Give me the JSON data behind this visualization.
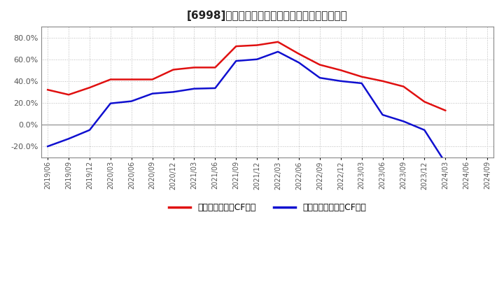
{
  "title": "[6998]　有利子負債キャッシュフロー比率の推移",
  "legend_red": "有利子負債営業CF比率",
  "legend_blue": "有利子負債フリーCF比率",
  "x_labels": [
    "2019/06",
    "2019/09",
    "2019/12",
    "2020/03",
    "2020/06",
    "2020/09",
    "2020/12",
    "2021/03",
    "2021/06",
    "2021/09",
    "2021/12",
    "2022/03",
    "2022/06",
    "2022/09",
    "2022/12",
    "2023/03",
    "2023/06",
    "2023/09",
    "2023/12",
    "2024/03",
    "2024/06",
    "2024/09"
  ],
  "red_values": [
    32.0,
    27.5,
    34.0,
    41.5,
    41.5,
    41.5,
    50.5,
    52.5,
    52.5,
    72.0,
    73.0,
    76.0,
    65.0,
    55.0,
    50.0,
    44.0,
    40.0,
    35.0,
    21.0,
    13.0,
    null,
    null
  ],
  "blue_values": [
    -20.0,
    -13.0,
    -5.0,
    19.5,
    21.5,
    28.5,
    30.0,
    33.0,
    33.5,
    58.5,
    60.0,
    67.0,
    57.0,
    43.0,
    40.0,
    38.0,
    9.0,
    3.0,
    -5.0,
    -35.0,
    null,
    null
  ],
  "ylim": [
    -30.0,
    90.0
  ],
  "yticks": [
    -20.0,
    0.0,
    20.0,
    40.0,
    60.0,
    80.0
  ],
  "color_red": "#e01010",
  "color_blue": "#1010d0",
  "background_color": "#ffffff",
  "plot_bg_color": "#ffffff",
  "grid_color": "#bbbbbb"
}
